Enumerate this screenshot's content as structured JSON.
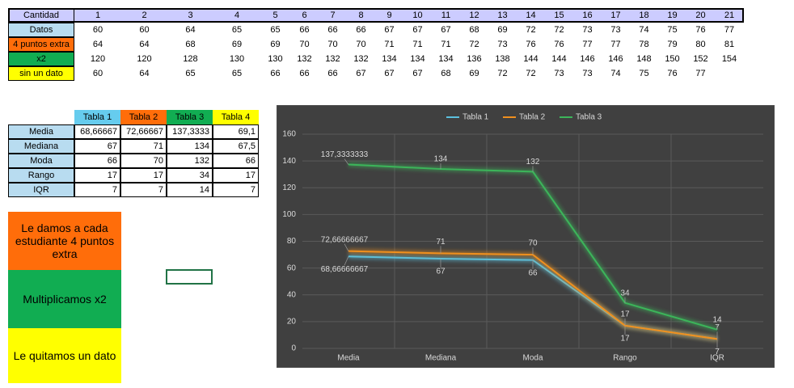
{
  "data_table": {
    "header": {
      "label": "Cantidad",
      "values": [
        1,
        2,
        3,
        4,
        5,
        6,
        7,
        8,
        9,
        10,
        11,
        12,
        13,
        14,
        15,
        16,
        17,
        18,
        19,
        20,
        21
      ]
    },
    "rows": [
      {
        "label": "Datos",
        "values": [
          60,
          60,
          64,
          65,
          65,
          66,
          66,
          66,
          67,
          67,
          67,
          68,
          69,
          72,
          72,
          73,
          73,
          74,
          75,
          76,
          77
        ]
      },
      {
        "label": "4 puntos extra",
        "values": [
          64,
          64,
          68,
          69,
          69,
          70,
          70,
          70,
          71,
          71,
          71,
          72,
          73,
          76,
          76,
          77,
          77,
          78,
          79,
          80,
          81
        ]
      },
      {
        "label": "x2",
        "values": [
          120,
          120,
          128,
          130,
          130,
          132,
          132,
          132,
          134,
          134,
          134,
          136,
          138,
          144,
          144,
          146,
          146,
          148,
          150,
          152,
          154
        ]
      },
      {
        "label": "sin un dato",
        "values": [
          60,
          64,
          65,
          65,
          66,
          66,
          66,
          67,
          67,
          67,
          68,
          69,
          72,
          72,
          73,
          73,
          74,
          75,
          76,
          77
        ]
      }
    ]
  },
  "stats_table": {
    "columns": [
      "Tabla 1",
      "Tabla 2",
      "Tabla 3",
      "Tabla 4"
    ],
    "rows": [
      {
        "label": "Media",
        "values": [
          "68,66667",
          "72,66667",
          "137,3333",
          "69,1"
        ]
      },
      {
        "label": "Mediana",
        "values": [
          "67",
          "71",
          "134",
          "67,5"
        ]
      },
      {
        "label": "Moda",
        "values": [
          "66",
          "70",
          "132",
          "66"
        ]
      },
      {
        "label": "Rango",
        "values": [
          "17",
          "17",
          "34",
          "17"
        ]
      },
      {
        "label": "IQR",
        "values": [
          "7",
          "7",
          "14",
          "7"
        ]
      }
    ]
  },
  "notes": [
    "Le damos a cada estudiante 4 puntos extra",
    "Multiplicamos x2",
    "Le quitamos un dato"
  ],
  "chart_data": {
    "type": "line",
    "categories": [
      "Media",
      "Mediana",
      "Moda",
      "Rango",
      "IQR"
    ],
    "series": [
      {
        "name": "Tabla 1",
        "color": "#5bc0de",
        "values": [
          68.66666667,
          67,
          66,
          17,
          7
        ],
        "value_labels": [
          "68,66666667",
          "67",
          "66",
          "17",
          "7"
        ]
      },
      {
        "name": "Tabla 2",
        "color": "#f0901e",
        "values": [
          72.66666667,
          71,
          70,
          17,
          7
        ],
        "value_labels": [
          "72,66666667",
          "71",
          "70",
          "17",
          "7"
        ]
      },
      {
        "name": "Tabla 3",
        "color": "#3cb55a",
        "values": [
          137.3333333,
          134,
          132,
          34,
          14
        ],
        "value_labels": [
          "137,3333333",
          "134",
          "132",
          "34",
          "14"
        ]
      }
    ],
    "ylim": [
      0,
      160
    ],
    "yticks": [
      0,
      20,
      40,
      60,
      80,
      100,
      120,
      140,
      160
    ],
    "grid": true,
    "legend": "top"
  }
}
